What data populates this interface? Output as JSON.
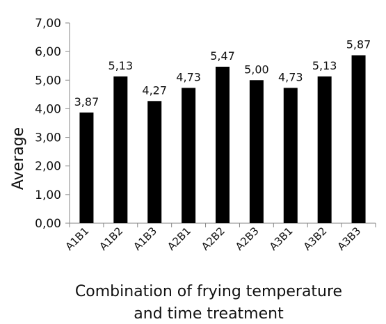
{
  "chart_data": {
    "type": "bar",
    "categories": [
      "A1B1",
      "A1B2",
      "A1B3",
      "A2B1",
      "A2B2",
      "A2B3",
      "A3B1",
      "A3B2",
      "A3B3"
    ],
    "values": [
      3.87,
      5.13,
      4.27,
      4.73,
      5.47,
      5.0,
      4.73,
      5.13,
      5.87
    ],
    "data_labels": [
      "3,87",
      "5,13",
      "4,27",
      "4,73",
      "5,47",
      "5,00",
      "4,73",
      "5,13",
      "5,87"
    ],
    "title": "",
    "xlabel_lines": [
      "Combination of frying temperature",
      "and time treatment"
    ],
    "ylabel": "Average",
    "ylim": [
      0,
      7
    ],
    "yticks": [
      0,
      1,
      2,
      3,
      4,
      5,
      6,
      7
    ],
    "ytick_labels": [
      "0,00",
      "1,00",
      "2,00",
      "3,00",
      "4,00",
      "5,00",
      "6,00",
      "7,00"
    ],
    "grid": false,
    "legend": "none",
    "bar_color": "#000000"
  }
}
